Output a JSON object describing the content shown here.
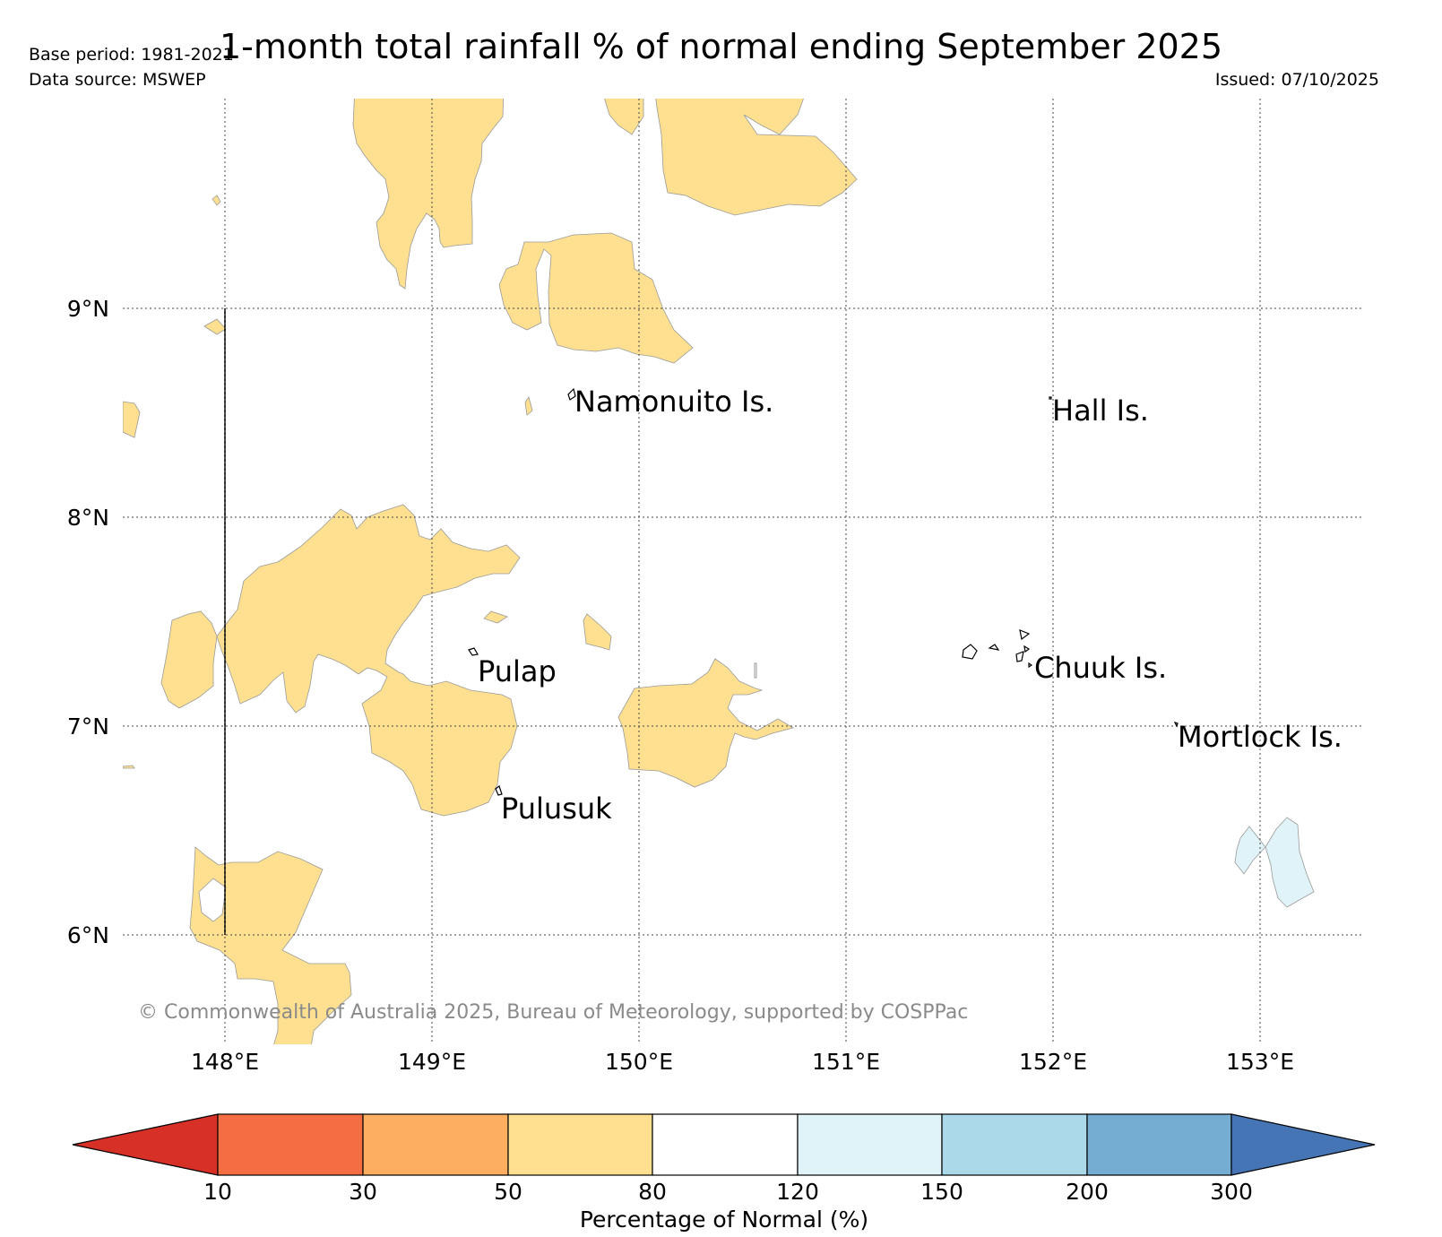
{
  "title": "1-month total rainfall % of normal ending September 2025",
  "meta": {
    "base_period": "Base period: 1981-2021",
    "data_source": "Data source: MSWEP",
    "issued": "Issued: 07/10/2025"
  },
  "axes": {
    "lon_ticks": [
      "148°E",
      "149°E",
      "150°E",
      "151°E",
      "152°E",
      "153°E"
    ],
    "lat_ticks": [
      "9°N",
      "8°N",
      "7°N",
      "6°N"
    ]
  },
  "places": {
    "namonuito": "Namonuito Is.",
    "hall": "Hall Is.",
    "pulap": "Pulap",
    "chuuk": "Chuuk Is.",
    "mortlock": "Mortlock Is.",
    "pulusuk": "Pulusuk"
  },
  "copyright": "© Commonwealth of Australia 2025, Bureau of Meteorology, supported by COSPPac",
  "colorbar": {
    "title": "Percentage of Normal (%)",
    "boundaries": [
      "10",
      "30",
      "50",
      "80",
      "120",
      "150",
      "200",
      "300"
    ],
    "colors": {
      "below_10": "#d73027",
      "c10_30": "#f46d43",
      "c30_50": "#fdae61",
      "c50_80": "#fee090",
      "c80_120": "#ffffff",
      "c120_150": "#e0f3f8",
      "c150_200": "#abd9e9",
      "c200_300": "#74add1",
      "above_300": "#4575b4"
    }
  }
}
